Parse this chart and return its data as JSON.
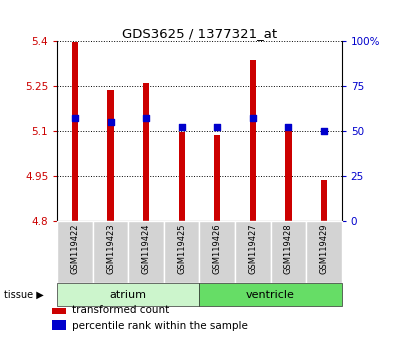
{
  "title": "GDS3625 / 1377321_at",
  "samples": [
    "GSM119422",
    "GSM119423",
    "GSM119424",
    "GSM119425",
    "GSM119426",
    "GSM119427",
    "GSM119428",
    "GSM119429"
  ],
  "transformed_counts": [
    5.395,
    5.237,
    5.26,
    5.097,
    5.088,
    5.335,
    5.103,
    4.937
  ],
  "percentile_ranks": [
    57,
    55,
    57,
    52,
    52,
    57,
    52,
    50
  ],
  "ylim_left": [
    4.8,
    5.4
  ],
  "ylim_right": [
    0,
    100
  ],
  "yticks_left": [
    4.8,
    4.95,
    5.1,
    5.25,
    5.4
  ],
  "yticks_right": [
    0,
    25,
    50,
    75,
    100
  ],
  "yticklabels_left": [
    "4.8",
    "4.95",
    "5.1",
    "5.25",
    "5.4"
  ],
  "yticklabels_right": [
    "0",
    "25",
    "50",
    "75",
    "100%"
  ],
  "bar_color": "#cc0000",
  "dot_color": "#0000cc",
  "bar_base": 4.8,
  "tissue_groups": [
    {
      "label": "atrium",
      "start": 0,
      "end": 4,
      "color": "#ccf5cc"
    },
    {
      "label": "ventricle",
      "start": 4,
      "end": 8,
      "color": "#66dd66"
    }
  ],
  "tissue_label": "tissue",
  "legend_items": [
    {
      "color": "#cc0000",
      "label": "transformed count"
    },
    {
      "color": "#0000cc",
      "label": "percentile rank within the sample"
    }
  ],
  "bar_width": 0.18,
  "dot_size": 22,
  "background_color": "#ffffff",
  "plot_bg_color": "#ffffff",
  "tick_color_left": "#cc0000",
  "tick_color_right": "#0000cc",
  "label_bg_color": "#d3d3d3"
}
